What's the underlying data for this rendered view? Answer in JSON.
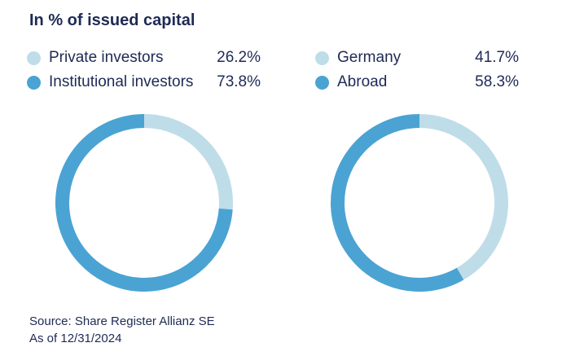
{
  "title": "In % of issued capital",
  "colors": {
    "light": "#bfdde8",
    "dark": "#4aa3d3",
    "text": "#1e2a55"
  },
  "chart_data": [
    {
      "type": "pie",
      "style": "donut",
      "categories": [
        "Private investors",
        "Institutional investors"
      ],
      "values": [
        26.2,
        73.8
      ],
      "value_labels": [
        "26.2%",
        "73.8%"
      ],
      "colors": [
        "#bfdde8",
        "#4aa3d3"
      ]
    },
    {
      "type": "pie",
      "style": "donut",
      "categories": [
        "Germany",
        "Abroad"
      ],
      "values": [
        41.7,
        58.3
      ],
      "value_labels": [
        "41.7%",
        "58.3%"
      ],
      "colors": [
        "#bfdde8",
        "#4aa3d3"
      ]
    }
  ],
  "footer": {
    "source": "Source: Share Register Allianz SE",
    "date": "As of 12/31/2024"
  }
}
